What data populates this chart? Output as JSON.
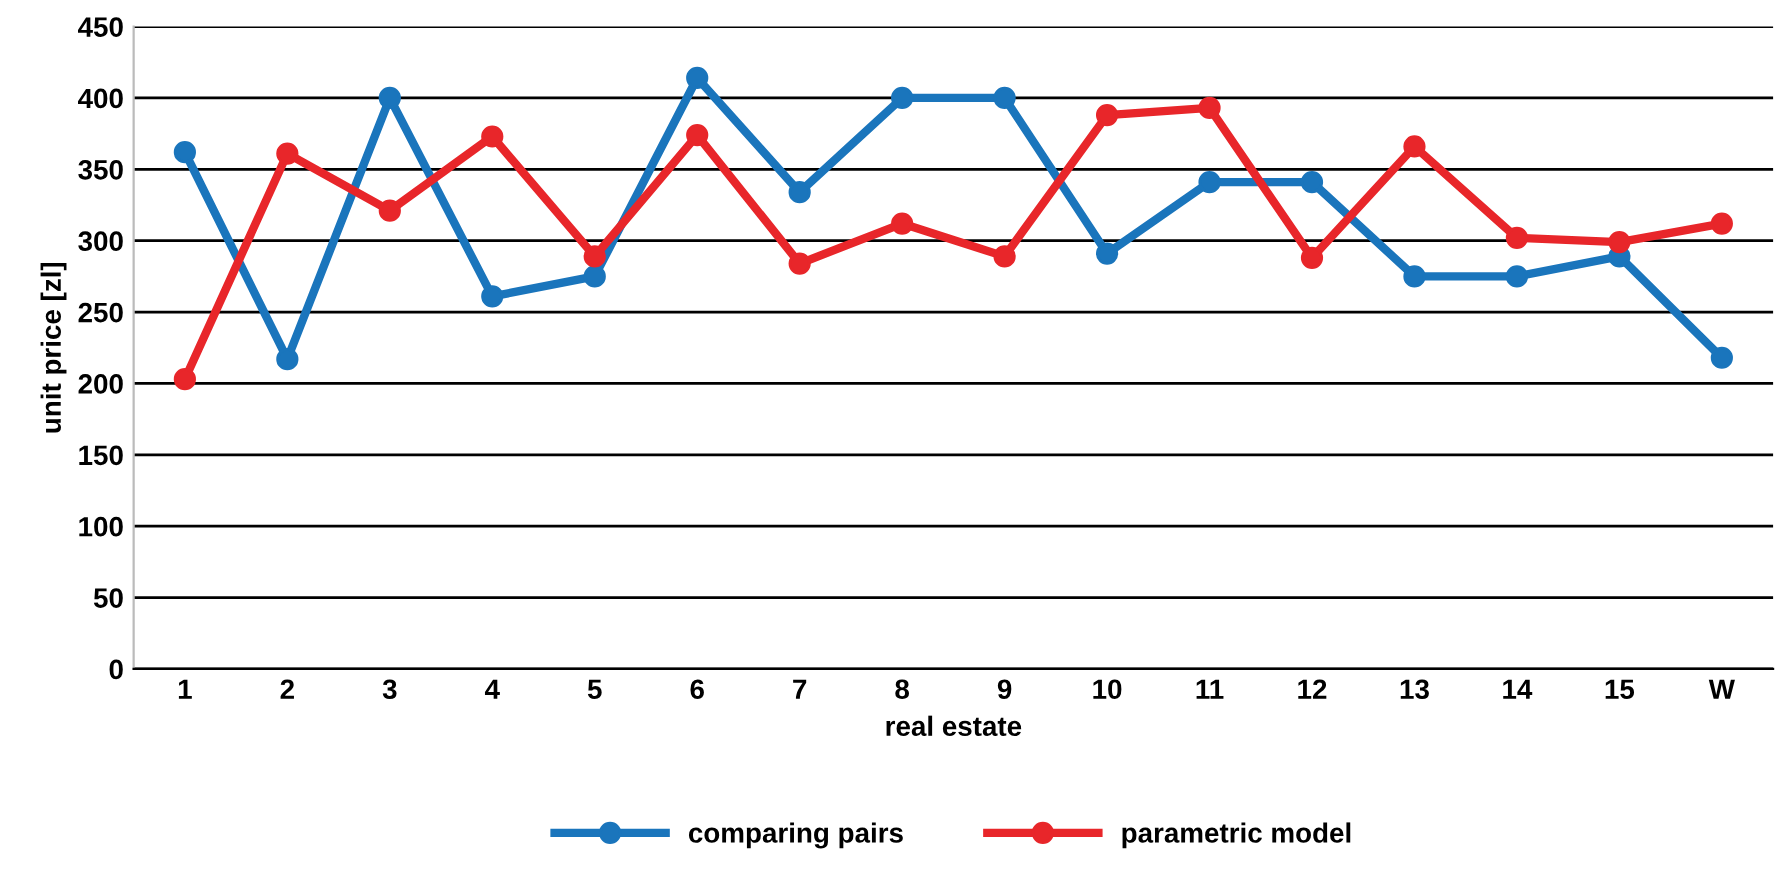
{
  "chart_data": {
    "type": "line",
    "xlabel": "real estate",
    "ylabel": "unit price [zl]",
    "categories": [
      "1",
      "2",
      "3",
      "4",
      "5",
      "6",
      "7",
      "8",
      "9",
      "10",
      "11",
      "12",
      "13",
      "14",
      "15",
      "W"
    ],
    "series": [
      {
        "name": "comparing pairs",
        "color": "#1a75bc",
        "values": [
          362,
          217,
          400,
          261,
          275,
          414,
          334,
          400,
          400,
          291,
          341,
          341,
          275,
          275,
          289,
          218
        ]
      },
      {
        "name": "parametric model",
        "color": "#e8262a",
        "values": [
          203,
          361,
          321,
          373,
          289,
          374,
          284,
          312,
          289,
          388,
          393,
          288,
          366,
          302,
          299,
          312
        ]
      }
    ],
    "ylim": [
      0,
      450
    ],
    "yticks": [
      0,
      50,
      100,
      150,
      200,
      250,
      300,
      350,
      400,
      450
    ],
    "grid": "y",
    "legend": "bottom",
    "marker": "circle",
    "line_style": "solid"
  }
}
